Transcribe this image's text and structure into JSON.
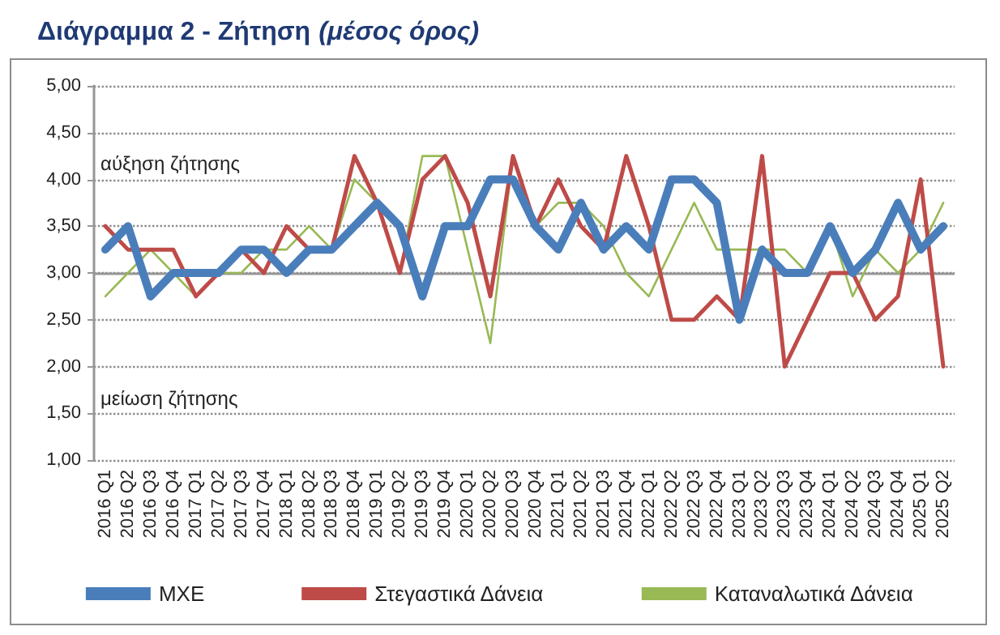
{
  "chart_data": {
    "type": "line",
    "title": "Διάγραμμα 2 - Ζήτηση",
    "subtitle": "(μέσος όρος)",
    "annotations": [
      "αύξηση ζήτησης",
      "μείωση ζήτησης"
    ],
    "categories": [
      "2016 Q1",
      "2016 Q2",
      "2016 Q3",
      "2016 Q4",
      "2017 Q1",
      "2017 Q2",
      "2017 Q3",
      "2017 Q4",
      "2018 Q1",
      "2018 Q2",
      "2018 Q3",
      "2018 Q4",
      "2019 Q1",
      "2019 Q2",
      "2019 Q3",
      "2019 Q4",
      "2020 Q1",
      "2020 Q2",
      "2020 Q3",
      "2020 Q4",
      "2021 Q1",
      "2021 Q2",
      "2021 Q3",
      "2021 Q4",
      "2022 Q1",
      "2022 Q2",
      "2022 Q3",
      "2022 Q4",
      "2023 Q1",
      "2023 Q2",
      "2023 Q3",
      "2023 Q4",
      "2024 Q1",
      "2024 Q2",
      "2024 Q3",
      "2024 Q4",
      "2025 Q1",
      "2025 Q2"
    ],
    "series": [
      {
        "name": "ΜΧΕ",
        "color": "#4a7ebb",
        "values": [
          3.25,
          3.5,
          2.75,
          3.0,
          3.0,
          3.0,
          3.25,
          3.25,
          3.0,
          3.25,
          3.25,
          3.5,
          3.75,
          3.5,
          2.75,
          3.5,
          3.5,
          4.0,
          4.0,
          3.5,
          3.25,
          3.75,
          3.25,
          3.5,
          3.25,
          4.0,
          4.0,
          3.75,
          2.5,
          3.25,
          3.0,
          3.0,
          3.5,
          3.0,
          3.25,
          3.75,
          3.25,
          3.5
        ]
      },
      {
        "name": "Στεγαστικά Δάνεια",
        "color": "#be4b48",
        "values": [
          3.5,
          3.25,
          3.25,
          3.25,
          2.75,
          3.0,
          3.25,
          3.0,
          3.5,
          3.25,
          3.25,
          4.25,
          3.75,
          3.0,
          4.0,
          4.25,
          3.75,
          2.75,
          4.25,
          3.5,
          4.0,
          3.5,
          3.25,
          4.25,
          3.5,
          2.5,
          2.5,
          2.75,
          2.5,
          4.25,
          2.0,
          2.5,
          3.0,
          3.0,
          2.5,
          2.75,
          4.0,
          2.0
        ]
      },
      {
        "name": "Καταναλωτικά Δάνεια",
        "color": "#98b954",
        "values": [
          2.75,
          3.0,
          3.25,
          3.0,
          2.75,
          3.0,
          3.0,
          3.25,
          3.25,
          3.5,
          3.25,
          4.0,
          3.75,
          3.0,
          4.25,
          4.25,
          3.25,
          2.25,
          4.25,
          3.5,
          3.75,
          3.75,
          3.5,
          3.0,
          2.75,
          3.25,
          3.75,
          3.25,
          3.25,
          3.25,
          3.25,
          3.0,
          3.5,
          2.75,
          3.25,
          3.0,
          3.25,
          3.75
        ]
      }
    ],
    "ylim": [
      1,
      5
    ],
    "yticks": [
      {
        "value": 1,
        "label": "1,00"
      },
      {
        "value": 1.5,
        "label": "1,50"
      },
      {
        "value": 2,
        "label": "2,00"
      },
      {
        "value": 2.5,
        "label": "2,50"
      },
      {
        "value": 3,
        "label": "3,00"
      },
      {
        "value": 3.5,
        "label": "3,50"
      },
      {
        "value": 4,
        "label": "4,00"
      },
      {
        "value": 4.5,
        "label": "4,50"
      },
      {
        "value": 5,
        "label": "5,00"
      }
    ],
    "ref_lines": [
      {
        "axis": "y",
        "value": 3,
        "color": "#969696"
      }
    ],
    "grid": "y",
    "legend": "bottom",
    "marker": "none",
    "line_style": "solid"
  }
}
